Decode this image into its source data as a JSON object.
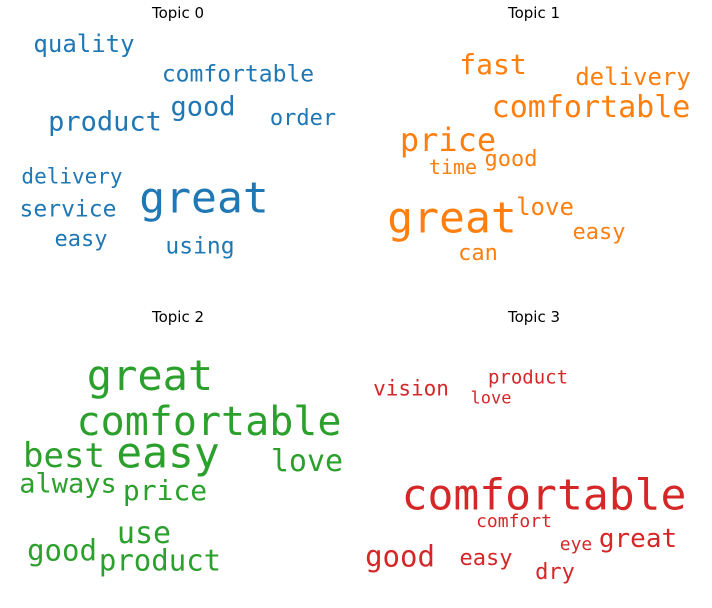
{
  "chart_data": [
    {
      "type": "wordcloud",
      "title": "Topic 0",
      "color": "#1f77b4",
      "words": [
        {
          "text": "great",
          "weight": 1.0
        },
        {
          "text": "product",
          "weight": 0.62
        },
        {
          "text": "good",
          "weight": 0.62
        },
        {
          "text": "quality",
          "weight": 0.55
        },
        {
          "text": "comfortable",
          "weight": 0.53
        },
        {
          "text": "service",
          "weight": 0.53
        },
        {
          "text": "using",
          "weight": 0.53
        },
        {
          "text": "order",
          "weight": 0.5
        },
        {
          "text": "easy",
          "weight": 0.5
        },
        {
          "text": "delivery",
          "weight": 0.48
        }
      ]
    },
    {
      "type": "wordcloud",
      "title": "Topic 1",
      "color": "#ff7f0e",
      "words": [
        {
          "text": "great",
          "weight": 1.0
        },
        {
          "text": "price",
          "weight": 0.75
        },
        {
          "text": "comfortable",
          "weight": 0.7
        },
        {
          "text": "fast",
          "weight": 0.65
        },
        {
          "text": "love",
          "weight": 0.55
        },
        {
          "text": "delivery",
          "weight": 0.55
        },
        {
          "text": "good",
          "weight": 0.5
        },
        {
          "text": "easy",
          "weight": 0.5
        },
        {
          "text": "can",
          "weight": 0.5
        },
        {
          "text": "time",
          "weight": 0.47
        }
      ]
    },
    {
      "type": "wordcloud",
      "title": "Topic 2",
      "color": "#2ca02c",
      "words": [
        {
          "text": "easy",
          "weight": 1.0
        },
        {
          "text": "great",
          "weight": 0.97
        },
        {
          "text": "comfortable",
          "weight": 0.92
        },
        {
          "text": "best",
          "weight": 0.78
        },
        {
          "text": "love",
          "weight": 0.7
        },
        {
          "text": "use",
          "weight": 0.7
        },
        {
          "text": "good",
          "weight": 0.68
        },
        {
          "text": "product",
          "weight": 0.68
        },
        {
          "text": "price",
          "weight": 0.65
        },
        {
          "text": "always",
          "weight": 0.62
        }
      ]
    },
    {
      "type": "wordcloud",
      "title": "Topic 3",
      "color": "#d62728",
      "words": [
        {
          "text": "comfortable",
          "weight": 1.0
        },
        {
          "text": "good",
          "weight": 0.68
        },
        {
          "text": "great",
          "weight": 0.6
        },
        {
          "text": "dry",
          "weight": 0.5
        },
        {
          "text": "easy",
          "weight": 0.5
        },
        {
          "text": "vision",
          "weight": 0.48
        },
        {
          "text": "product",
          "weight": 0.45
        },
        {
          "text": "comfort",
          "weight": 0.43
        },
        {
          "text": "eye",
          "weight": 0.43
        },
        {
          "text": "love",
          "weight": 0.4
        }
      ]
    }
  ]
}
